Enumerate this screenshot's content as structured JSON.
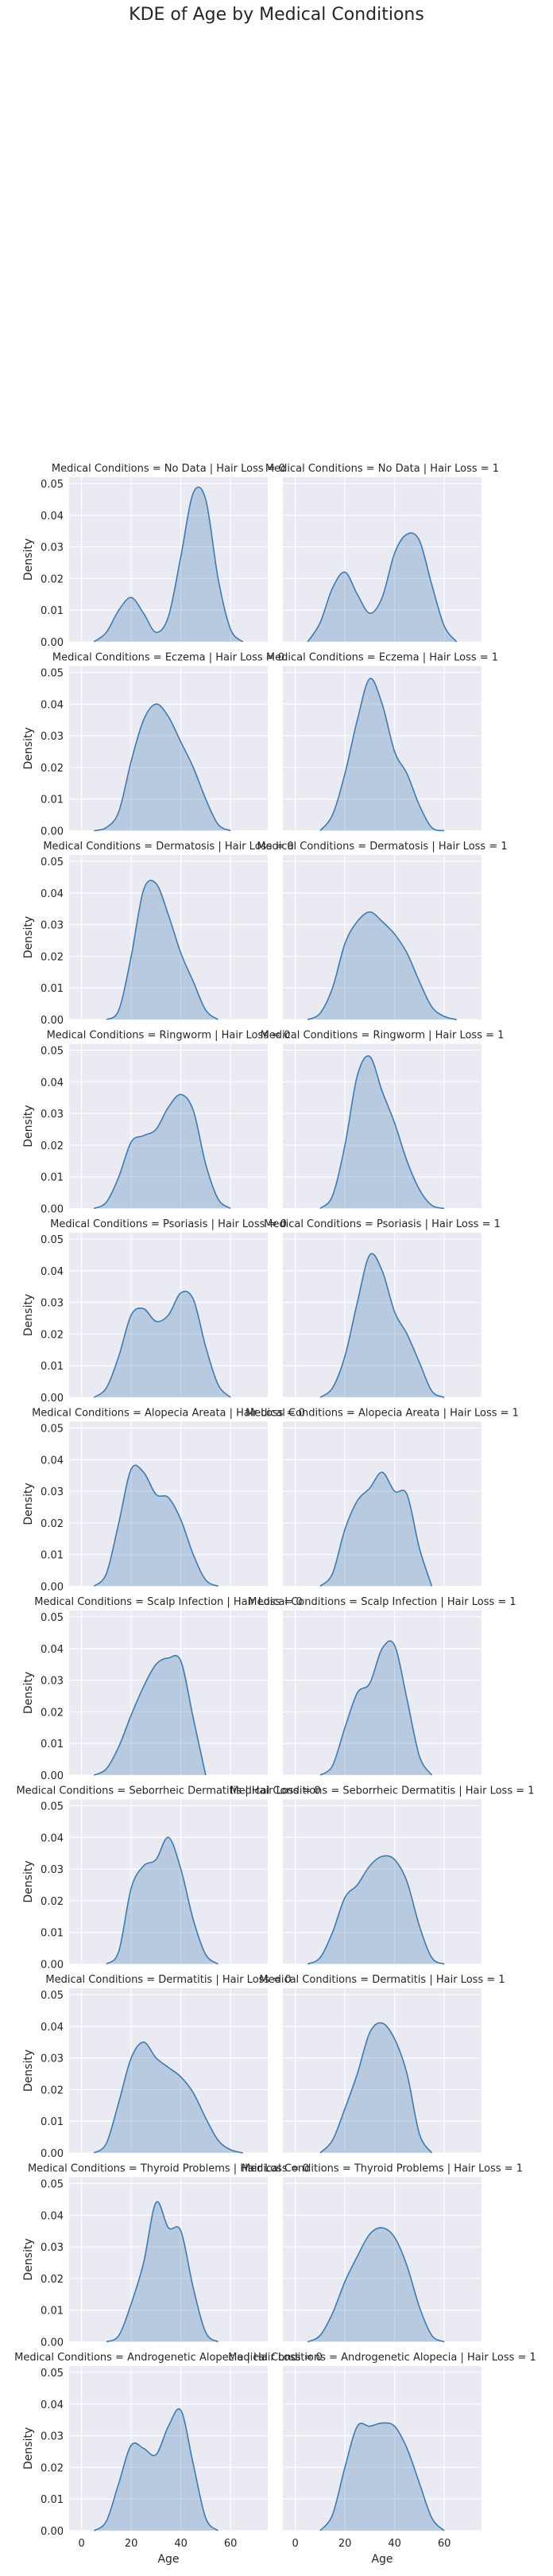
{
  "figure": {
    "title": "KDE of Age by Medical Conditions",
    "colors": {
      "fill": "#4682b4",
      "line": "#3f7bb0",
      "panel_bg": "#eaeaf2",
      "grid": "#ffffff",
      "text": "#262626"
    }
  },
  "chart_data": {
    "type": "area",
    "kind": "kde-facet-grid",
    "title": "KDE of Age by Medical Conditions",
    "row_variable": "Medical Conditions",
    "col_variable": "Hair Loss",
    "xlabel": "Age",
    "ylabel": "Density",
    "xlim": [
      -5,
      75
    ],
    "ylim": [
      0,
      0.052
    ],
    "xticks": [
      "0",
      "20",
      "40",
      "60"
    ],
    "yticks": [
      "0.00",
      "0.01",
      "0.02",
      "0.03",
      "0.04",
      "0.05"
    ],
    "grid": true,
    "facets": [
      {
        "row": 0,
        "col": 0,
        "title": "Medical Conditions = No Data | Hair Loss = 0",
        "x": [
          5,
          10,
          15,
          20,
          25,
          30,
          35,
          40,
          45,
          50,
          55,
          60,
          65
        ],
        "y": [
          0.0,
          0.003,
          0.01,
          0.014,
          0.009,
          0.003,
          0.008,
          0.027,
          0.047,
          0.045,
          0.02,
          0.004,
          0.0
        ]
      },
      {
        "row": 0,
        "col": 1,
        "title": "Medical Conditions = No Data | Hair Loss = 1",
        "x": [
          5,
          10,
          15,
          20,
          25,
          30,
          35,
          40,
          45,
          50,
          55,
          60,
          65
        ],
        "y": [
          0.0,
          0.006,
          0.017,
          0.022,
          0.015,
          0.009,
          0.014,
          0.028,
          0.034,
          0.032,
          0.018,
          0.005,
          0.0
        ]
      },
      {
        "row": 1,
        "col": 0,
        "title": "Medical Conditions = Eczema | Hair Loss = 0",
        "x": [
          5,
          10,
          15,
          20,
          25,
          30,
          35,
          40,
          45,
          50,
          55,
          60
        ],
        "y": [
          0.0,
          0.001,
          0.006,
          0.022,
          0.035,
          0.04,
          0.036,
          0.028,
          0.02,
          0.01,
          0.002,
          0.0
        ]
      },
      {
        "row": 1,
        "col": 1,
        "title": "Medical Conditions = Eczema | Hair Loss = 1",
        "x": [
          10,
          15,
          20,
          25,
          30,
          35,
          40,
          45,
          50,
          55,
          60
        ],
        "y": [
          0.0,
          0.005,
          0.018,
          0.035,
          0.048,
          0.04,
          0.025,
          0.018,
          0.008,
          0.001,
          0.0
        ]
      },
      {
        "row": 2,
        "col": 0,
        "title": "Medical Conditions = Dermatosis | Hair Loss = 0",
        "x": [
          10,
          15,
          20,
          25,
          30,
          35,
          40,
          45,
          50,
          55
        ],
        "y": [
          0.0,
          0.003,
          0.02,
          0.041,
          0.043,
          0.033,
          0.021,
          0.012,
          0.003,
          0.0
        ]
      },
      {
        "row": 2,
        "col": 1,
        "title": "Medical Conditions = Dermatosis | Hair Loss = 1",
        "x": [
          5,
          10,
          15,
          20,
          25,
          30,
          35,
          40,
          45,
          50,
          55,
          60,
          65
        ],
        "y": [
          0.0,
          0.002,
          0.01,
          0.024,
          0.031,
          0.034,
          0.031,
          0.027,
          0.021,
          0.012,
          0.004,
          0.001,
          0.0
        ]
      },
      {
        "row": 3,
        "col": 0,
        "title": "Medical Conditions = Ringworm | Hair Loss = 0",
        "x": [
          5,
          10,
          15,
          20,
          25,
          30,
          35,
          40,
          45,
          50,
          55,
          60
        ],
        "y": [
          0.0,
          0.002,
          0.01,
          0.021,
          0.023,
          0.025,
          0.032,
          0.036,
          0.031,
          0.014,
          0.003,
          0.0
        ]
      },
      {
        "row": 3,
        "col": 1,
        "title": "Medical Conditions = Ringworm | Hair Loss = 1",
        "x": [
          10,
          15,
          20,
          25,
          30,
          35,
          40,
          45,
          50,
          55,
          60
        ],
        "y": [
          0.0,
          0.004,
          0.02,
          0.042,
          0.048,
          0.037,
          0.027,
          0.015,
          0.006,
          0.001,
          0.0
        ]
      },
      {
        "row": 4,
        "col": 0,
        "title": "Medical Conditions = Psoriasis | Hair Loss = 0",
        "x": [
          5,
          10,
          15,
          20,
          25,
          30,
          35,
          40,
          45,
          50,
          55,
          60
        ],
        "y": [
          0.0,
          0.003,
          0.013,
          0.026,
          0.028,
          0.024,
          0.026,
          0.033,
          0.031,
          0.016,
          0.004,
          0.0
        ]
      },
      {
        "row": 4,
        "col": 1,
        "title": "Medical Conditions = Psoriasis | Hair Loss = 1",
        "x": [
          10,
          15,
          20,
          25,
          30,
          35,
          40,
          45,
          50,
          55,
          60
        ],
        "y": [
          0.0,
          0.003,
          0.013,
          0.03,
          0.045,
          0.04,
          0.027,
          0.02,
          0.011,
          0.002,
          0.0
        ]
      },
      {
        "row": 5,
        "col": 0,
        "title": "Medical Conditions = Alopecia Areata  | Hair Loss = 0",
        "x": [
          5,
          10,
          15,
          20,
          25,
          30,
          35,
          40,
          45,
          50,
          55
        ],
        "y": [
          0.0,
          0.004,
          0.02,
          0.037,
          0.036,
          0.029,
          0.028,
          0.021,
          0.01,
          0.002,
          0.0
        ]
      },
      {
        "row": 5,
        "col": 1,
        "title": "Medical Conditions = Alopecia Areata  | Hair Loss = 1",
        "x": [
          10,
          15,
          20,
          25,
          30,
          35,
          40,
          45,
          50,
          55
        ],
        "y": [
          0.0,
          0.004,
          0.018,
          0.027,
          0.031,
          0.036,
          0.03,
          0.029,
          0.012,
          0.0
        ]
      },
      {
        "row": 6,
        "col": 0,
        "title": "Medical Conditions = Scalp Infection | Hair Loss = 0",
        "x": [
          5,
          10,
          15,
          20,
          25,
          30,
          35,
          40,
          45,
          50
        ],
        "y": [
          0.0,
          0.002,
          0.009,
          0.019,
          0.028,
          0.035,
          0.037,
          0.036,
          0.018,
          0.0
        ]
      },
      {
        "row": 6,
        "col": 1,
        "title": "Medical Conditions = Scalp Infection | Hair Loss = 1",
        "x": [
          10,
          15,
          20,
          25,
          30,
          35,
          40,
          45,
          50,
          55
        ],
        "y": [
          0.0,
          0.003,
          0.015,
          0.026,
          0.029,
          0.04,
          0.041,
          0.024,
          0.006,
          0.0
        ]
      },
      {
        "row": 7,
        "col": 0,
        "title": "Medical Conditions = Seborrheic Dermatitis | Hair Loss = 0",
        "x": [
          10,
          15,
          20,
          25,
          30,
          35,
          40,
          45,
          50,
          55
        ],
        "y": [
          0.0,
          0.004,
          0.024,
          0.031,
          0.033,
          0.04,
          0.03,
          0.014,
          0.003,
          0.0
        ]
      },
      {
        "row": 7,
        "col": 1,
        "title": "Medical Conditions = Seborrheic Dermatitis | Hair Loss = 1",
        "x": [
          5,
          10,
          15,
          20,
          25,
          30,
          35,
          40,
          45,
          50,
          55,
          60
        ],
        "y": [
          0.0,
          0.002,
          0.01,
          0.021,
          0.025,
          0.031,
          0.034,
          0.033,
          0.026,
          0.012,
          0.002,
          0.0
        ]
      },
      {
        "row": 8,
        "col": 0,
        "title": "Medical Conditions = Dermatitis | Hair Loss = 0",
        "x": [
          5,
          10,
          15,
          20,
          25,
          30,
          35,
          40,
          45,
          50,
          55,
          60,
          65
        ],
        "y": [
          0.0,
          0.003,
          0.016,
          0.03,
          0.035,
          0.03,
          0.027,
          0.024,
          0.019,
          0.011,
          0.004,
          0.001,
          0.0
        ]
      },
      {
        "row": 8,
        "col": 1,
        "title": "Medical Conditions = Dermatitis | Hair Loss = 1",
        "x": [
          10,
          15,
          20,
          25,
          30,
          35,
          40,
          45,
          50,
          55
        ],
        "y": [
          0.0,
          0.004,
          0.014,
          0.025,
          0.038,
          0.041,
          0.036,
          0.025,
          0.006,
          0.0
        ]
      },
      {
        "row": 9,
        "col": 0,
        "title": "Medical Conditions = Thyroid Problems | Hair Loss = 0",
        "x": [
          10,
          15,
          20,
          25,
          30,
          35,
          40,
          45,
          50,
          55
        ],
        "y": [
          0.0,
          0.002,
          0.012,
          0.025,
          0.044,
          0.036,
          0.035,
          0.017,
          0.003,
          0.0
        ]
      },
      {
        "row": 9,
        "col": 1,
        "title": "Medical Conditions = Thyroid Problems | Hair Loss = 1",
        "x": [
          5,
          10,
          15,
          20,
          25,
          30,
          35,
          40,
          45,
          50,
          55,
          60
        ],
        "y": [
          0.0,
          0.002,
          0.009,
          0.019,
          0.027,
          0.034,
          0.036,
          0.033,
          0.024,
          0.011,
          0.002,
          0.0
        ]
      },
      {
        "row": 10,
        "col": 0,
        "title": "Medical Conditions = Androgenetic Alopecia | Hair Loss = 0",
        "x": [
          5,
          10,
          15,
          20,
          25,
          30,
          35,
          40,
          45,
          50,
          55
        ],
        "y": [
          0.0,
          0.003,
          0.015,
          0.027,
          0.026,
          0.024,
          0.033,
          0.038,
          0.021,
          0.004,
          0.0
        ]
      },
      {
        "row": 10,
        "col": 1,
        "title": "Medical Conditions = Androgenetic Alopecia | Hair Loss = 1",
        "x": [
          10,
          15,
          20,
          25,
          30,
          35,
          40,
          45,
          50,
          55,
          60
        ],
        "y": [
          0.0,
          0.005,
          0.02,
          0.033,
          0.033,
          0.034,
          0.033,
          0.026,
          0.015,
          0.004,
          0.0
        ]
      }
    ]
  }
}
